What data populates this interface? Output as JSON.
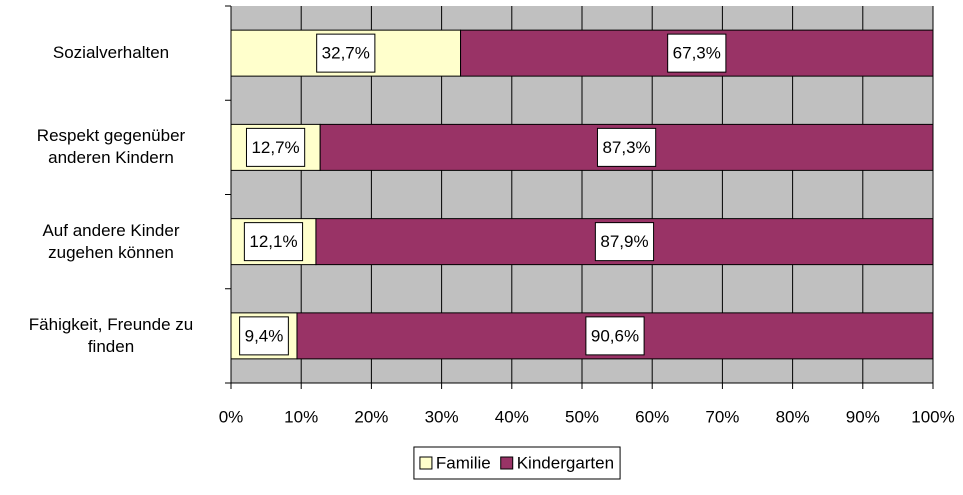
{
  "chart_data": {
    "type": "stacked-bar-horizontal",
    "categories": [
      "Sozialverhalten",
      "Respekt gegenüber\nanderen Kindern",
      "Auf andere Kinder\nzugehen können",
      "Fähigkeit, Freunde zu\nfinden"
    ],
    "series": [
      {
        "name": "Familie",
        "color": "#ffffcc",
        "values": [
          32.7,
          12.7,
          12.1,
          9.4
        ],
        "value_labels": [
          "32,7%",
          "12,7%",
          "12,1%",
          "9,4%"
        ]
      },
      {
        "name": "Kindergarten",
        "color": "#993366",
        "values": [
          67.3,
          87.3,
          87.9,
          90.6
        ],
        "value_labels": [
          "67,3%",
          "87,3%",
          "87,9%",
          "90,6%"
        ]
      }
    ],
    "xlim": [
      0,
      100
    ],
    "xticks": [
      {
        "value": 0,
        "label": "0%"
      },
      {
        "value": 10,
        "label": "10%"
      },
      {
        "value": 20,
        "label": "20%"
      },
      {
        "value": 30,
        "label": "30%"
      },
      {
        "value": 40,
        "label": "40%"
      },
      {
        "value": 50,
        "label": "50%"
      },
      {
        "value": 60,
        "label": "60%"
      },
      {
        "value": 70,
        "label": "70%"
      },
      {
        "value": 80,
        "label": "80%"
      },
      {
        "value": 90,
        "label": "90%"
      },
      {
        "value": 100,
        "label": "100%"
      }
    ],
    "grid": true,
    "legend": "bottom"
  }
}
